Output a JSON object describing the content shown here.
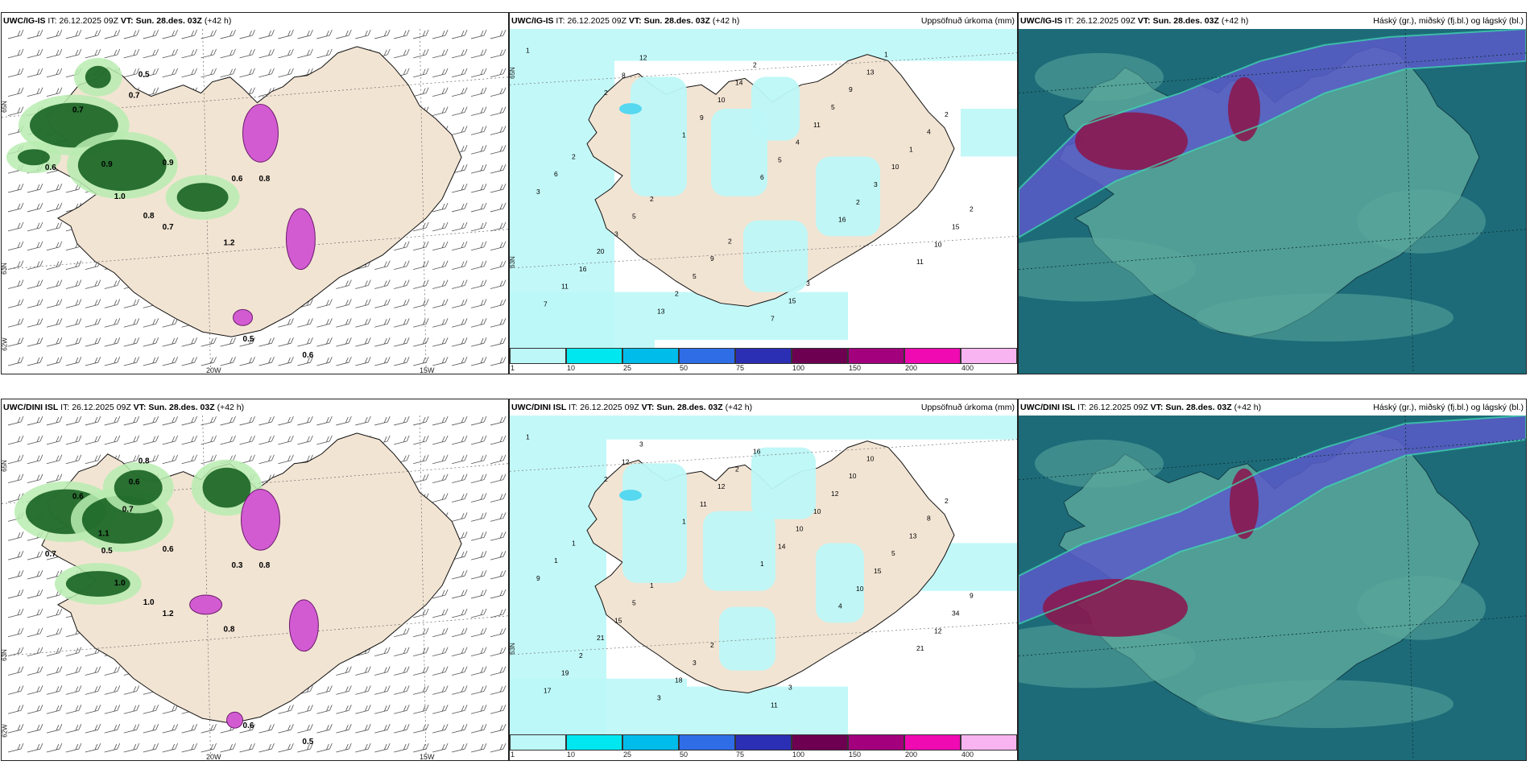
{
  "rows": [
    {
      "model": "UWC/IG-IS",
      "panels": [
        {
          "id": "wind",
          "model": "UWC/IG-IS",
          "it_label": "IT:",
          "it_value": "26.12.2025 09Z",
          "vt_label": "VT:",
          "vt_value": "Sun. 28.des. 03Z",
          "lead": "(+42 h)",
          "right_title": ""
        },
        {
          "id": "precip",
          "model": "UWC/IG-IS",
          "it_label": "IT:",
          "it_value": "26.12.2025 09Z",
          "vt_label": "VT:",
          "vt_value": "Sun. 28.des. 03Z",
          "lead": "(+42 h)",
          "right_title": "Uppsöfnuð úrkoma (mm)"
        },
        {
          "id": "cloud",
          "model": "UWC/IG-IS",
          "it_label": "IT:",
          "it_value": "26.12.2025 09Z",
          "vt_label": "VT:",
          "vt_value": "Sun. 28.des. 03Z",
          "lead": "(+42 h)",
          "right_title": "Háský (gr.), miðský (fj.bl.) og lágský (bl.)"
        }
      ],
      "wind_values": [
        "0.5",
        "0.7",
        "0.6",
        "0.9",
        "0.7",
        "1.0",
        "0.8",
        "0.9",
        "0.7",
        "1.2",
        "0.6",
        "0.8",
        "0.5",
        "0.6"
      ],
      "precip_values": [
        "1",
        "2",
        "1",
        "6",
        "16",
        "11",
        "7",
        "8",
        "9",
        "5",
        "2",
        "10",
        "11",
        "12",
        "10",
        "4",
        "3",
        "15",
        "16",
        "13",
        "14",
        "11",
        "10",
        "2",
        "20",
        "2",
        "2",
        "5",
        "1",
        "3",
        "3",
        "5",
        "7",
        "9",
        "4",
        "6",
        "5",
        "9",
        "15",
        "13",
        "2",
        "2",
        "2",
        "2",
        "3",
        "1"
      ]
    },
    {
      "model": "UWC/DINI ISL",
      "panels": [
        {
          "id": "wind",
          "model": "UWC/DINI ISL",
          "it_label": "IT:",
          "it_value": "26.12.2025 09Z",
          "vt_label": "VT:",
          "vt_value": "Sun. 28.des. 03Z",
          "lead": "(+42 h)",
          "right_title": ""
        },
        {
          "id": "precip",
          "model": "UWC/DINI ISL",
          "it_label": "IT:",
          "it_value": "26.12.2025 09Z",
          "vt_label": "VT:",
          "vt_value": "Sun. 28.des. 03Z",
          "lead": "(+42 h)",
          "right_title": "Uppsöfnuð úrkoma (mm)"
        },
        {
          "id": "cloud",
          "model": "UWC/DINI ISL",
          "it_label": "IT:",
          "it_value": "26.12.2025 09Z",
          "vt_label": "VT:",
          "vt_value": "Sun. 28.des. 03Z",
          "lead": "(+42 h)",
          "right_title": "Háský (gr.), miðský (fj.bl.) og lágský (bl.)"
        }
      ],
      "wind_values": [
        "0.8",
        "0.6",
        "0.7",
        "0.5",
        "0.6",
        "1.0",
        "1.0",
        "0.6",
        "1.2",
        "0.8",
        "0.3",
        "0.8",
        "0.6",
        "0.5",
        "0.7",
        "1.1"
      ],
      "precip_values": [
        "1",
        "2",
        "1",
        "1",
        "4",
        "21",
        "17",
        "12",
        "11",
        "14",
        "10",
        "12",
        "19",
        "3",
        "12",
        "10",
        "15",
        "34",
        "2",
        "3",
        "2",
        "10",
        "5",
        "9",
        "21",
        "18",
        "16",
        "12",
        "13",
        "9",
        "15",
        "3",
        "11",
        "10",
        "8",
        "1",
        "5",
        "2",
        "3",
        "10",
        "2",
        "1",
        "1"
      ]
    }
  ],
  "lon_labels": [
    "20W",
    "15W"
  ],
  "lat_labels": [
    "65N",
    "63N",
    "62W"
  ],
  "colorbar": {
    "ticks": [
      "1",
      "10",
      "25",
      "50",
      "75",
      "100",
      "150",
      "200",
      "400"
    ],
    "colors": [
      "#bdf7f7",
      "#00e7f0",
      "#00bcea",
      "#2e6de6",
      "#2b2fb4",
      "#6d0050",
      "#a3007d",
      "#ef0ab2",
      "#f8b4f0"
    ]
  },
  "colors": {
    "land": "#f2e4d3",
    "precip_light": "#bdf7f7",
    "precip_mid": "#55d8f0",
    "green_dark": "#0e5a1a",
    "green_light": "#b9ecb0",
    "magenta": "#d25bd2",
    "cloud_sea": "#1d6b78",
    "cloud_low": "#5aa89c",
    "cloud_mid": "#5a5ac8",
    "cloud_high": "#8a1850"
  }
}
